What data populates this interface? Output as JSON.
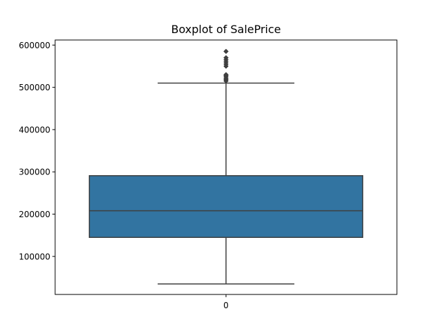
{
  "chart_data": {
    "type": "boxplot",
    "title": "Boxplot of SalePrice",
    "xlabel": "",
    "ylabel": "",
    "categories": [
      "0"
    ],
    "ylim": [
      10000,
      612000
    ],
    "yticks": [
      100000,
      200000,
      300000,
      400000,
      500000,
      600000
    ],
    "ytick_labels": [
      "100000",
      "200000",
      "300000",
      "400000",
      "500000",
      "600000"
    ],
    "grid": false,
    "box": {
      "whisker_low": 34900,
      "q1": 145000,
      "median": 208000,
      "q3": 291000,
      "whisker_high": 510000,
      "outliers": [
        515000,
        518000,
        521000,
        525000,
        528000,
        530000,
        550000,
        555000,
        560000,
        565000,
        570000,
        585000
      ]
    },
    "colors": {
      "box_fill": "#3274a1",
      "line": "#3f3f3f",
      "axes": "#000000"
    }
  }
}
